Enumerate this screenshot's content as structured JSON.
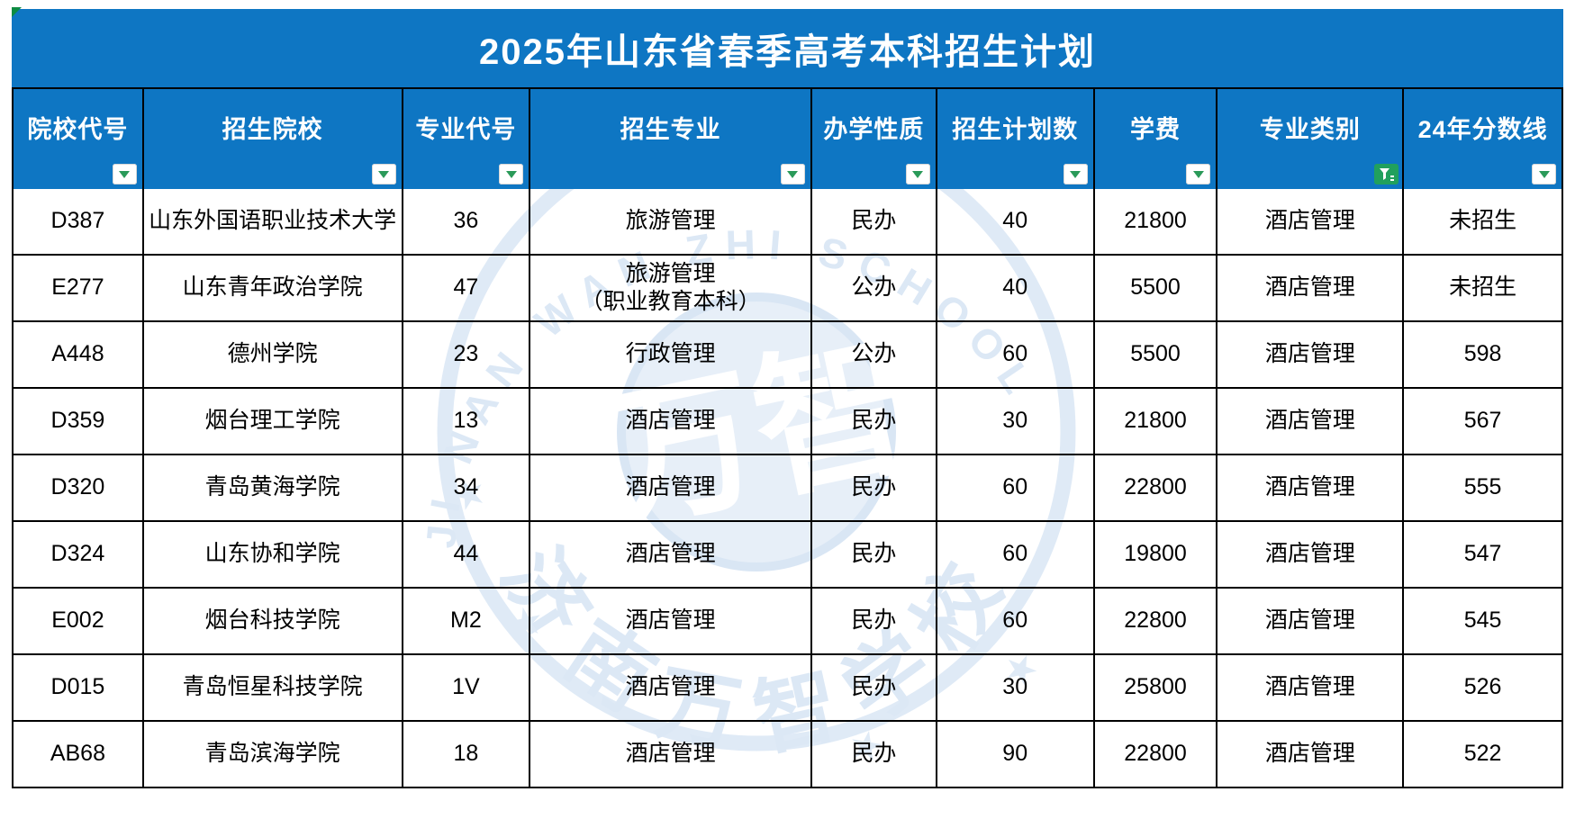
{
  "title": "2025年山东省春季高考本科招生计划",
  "table": {
    "columns": [
      {
        "label": "院校代号",
        "filter": "inactive"
      },
      {
        "label": "招生院校",
        "filter": "inactive"
      },
      {
        "label": "专业代号",
        "filter": "inactive"
      },
      {
        "label": "招生专业",
        "filter": "inactive"
      },
      {
        "label": "办学性质",
        "filter": "inactive"
      },
      {
        "label": "招生计划数",
        "filter": "inactive"
      },
      {
        "label": "学费",
        "filter": "inactive"
      },
      {
        "label": "专业类别",
        "filter": "active"
      },
      {
        "label": "24年分数线",
        "filter": "inactive"
      }
    ],
    "rows": [
      [
        "D387",
        "山东外国语职业技术大学",
        "36",
        "旅游管理",
        "民办",
        "40",
        "21800",
        "酒店管理",
        "未招生"
      ],
      [
        "E277",
        "山东青年政治学院",
        "47",
        "旅游管理\n（职业教育本科）",
        "公办",
        "40",
        "5500",
        "酒店管理",
        "未招生"
      ],
      [
        "A448",
        "德州学院",
        "23",
        "行政管理",
        "公办",
        "60",
        "5500",
        "酒店管理",
        "598"
      ],
      [
        "D359",
        "烟台理工学院",
        "13",
        "酒店管理",
        "民办",
        "30",
        "21800",
        "酒店管理",
        "567"
      ],
      [
        "D320",
        "青岛黄海学院",
        "34",
        "酒店管理",
        "民办",
        "60",
        "22800",
        "酒店管理",
        "555"
      ],
      [
        "D324",
        "山东协和学院",
        "44",
        "酒店管理",
        "民办",
        "60",
        "19800",
        "酒店管理",
        "547"
      ],
      [
        "E002",
        "烟台科技学院",
        "M2",
        "酒店管理",
        "民办",
        "60",
        "22800",
        "酒店管理",
        "545"
      ],
      [
        "D015",
        "青岛恒星科技学院",
        "1V",
        "酒店管理",
        "民办",
        "30",
        "25800",
        "酒店管理",
        "526"
      ],
      [
        "AB68",
        "青岛滨海学院",
        "18",
        "酒店管理",
        "民办",
        "90",
        "22800",
        "酒店管理",
        "522"
      ]
    ]
  },
  "watermark": {
    "arc_text": "JI NAN WAN ZHI SCHOOL",
    "bottom_text": "济南万智学校",
    "center_text": "万智"
  },
  "colors": {
    "header_blue": "#0e76c3",
    "filter_green": "#2a9a59",
    "active_filter_green": "#21a05d",
    "border_black": "#000000",
    "watermark_blue": "#cddef1",
    "corner_marker_green": "#0d8b42"
  }
}
